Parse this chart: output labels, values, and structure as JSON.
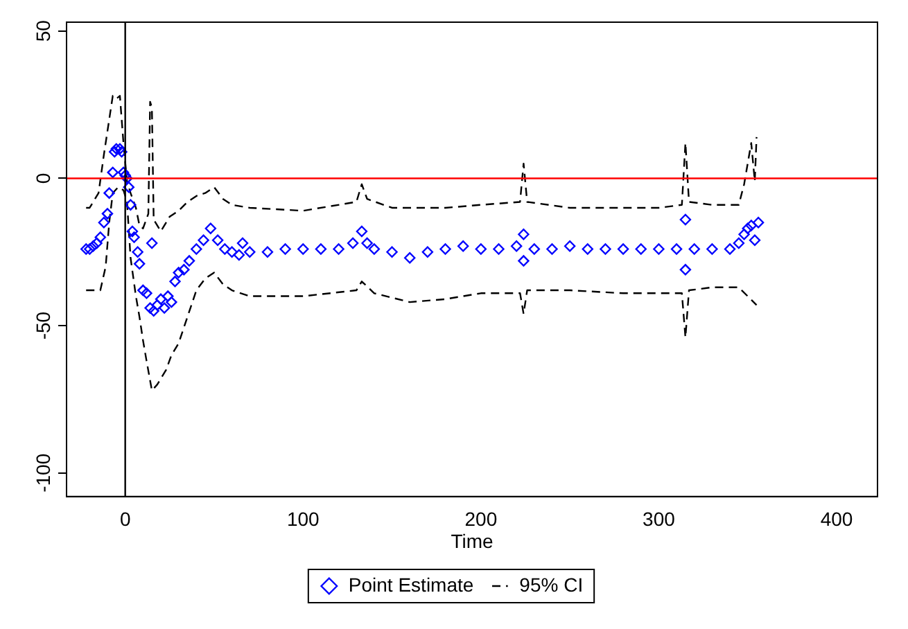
{
  "chart_data": {
    "type": "scatter",
    "xlabel": "Time",
    "xlim": [
      -33,
      423
    ],
    "ylim": [
      -108,
      53
    ],
    "xticks": [
      0,
      100,
      200,
      300,
      400
    ],
    "yticks": [
      -100,
      -50,
      0,
      50
    ],
    "grid": false,
    "legend": "bottom",
    "ref_lines": [
      {
        "axis": "y",
        "value": 0,
        "color": "#ff0000"
      },
      {
        "axis": "x",
        "value": 0,
        "color": "#000000"
      }
    ],
    "series": [
      {
        "name": "Point Estimate",
        "color": "#0000ff",
        "marker": "diamond",
        "x": [
          -22,
          -20,
          -18,
          -16,
          -14,
          -12,
          -10,
          -9,
          -7,
          -6,
          -5,
          -3,
          -2,
          -1,
          0,
          1,
          2,
          3,
          4,
          5,
          7,
          8,
          10,
          12,
          14,
          15,
          16,
          18,
          20,
          22,
          24,
          26,
          28,
          30,
          33,
          36,
          40,
          44,
          48,
          52,
          56,
          60,
          64,
          66,
          70,
          80,
          90,
          100,
          110,
          120,
          128,
          133,
          136,
          140,
          150,
          160,
          170,
          180,
          190,
          200,
          210,
          220,
          224,
          224,
          230,
          240,
          250,
          260,
          270,
          280,
          290,
          300,
          310,
          315,
          315,
          320,
          330,
          340,
          345,
          348,
          350,
          352,
          354,
          356
        ],
        "values": [
          -24,
          -24,
          -23,
          -22,
          -20,
          -15,
          -12,
          -5,
          2,
          9,
          10,
          10,
          9,
          2,
          1,
          0,
          -3,
          -9,
          -18,
          -20,
          -25,
          -29,
          -38,
          -39,
          -44,
          -22,
          -45,
          -43,
          -41,
          -44,
          -40,
          -42,
          -35,
          -32,
          -31,
          -28,
          -24,
          -21,
          -17,
          -21,
          -24,
          -25,
          -26,
          -22,
          -25,
          -25,
          -24,
          -24,
          -24,
          -24,
          -22,
          -18,
          -22,
          -24,
          -25,
          -27,
          -25,
          -24,
          -23,
          -24,
          -24,
          -23,
          -19,
          -28,
          -24,
          -24,
          -23,
          -24,
          -24,
          -24,
          -24,
          -24,
          -24,
          -14,
          -31,
          -24,
          -24,
          -24,
          -22,
          -19,
          -17,
          -16,
          -21,
          -15
        ]
      },
      {
        "name": "95% CI",
        "type": "line",
        "color": "#000000",
        "line_style": "dashed",
        "x": [
          -22,
          -20,
          -18,
          -15,
          -12,
          -9,
          -7,
          -5,
          -3,
          -1,
          1,
          3,
          6,
          8,
          10,
          13,
          14,
          15,
          16,
          20,
          25,
          30,
          35,
          40,
          45,
          50,
          55,
          60,
          70,
          100,
          130,
          133,
          136,
          150,
          180,
          200,
          222,
          224,
          226,
          250,
          280,
          300,
          313,
          315,
          317,
          330,
          345,
          348,
          350,
          352,
          354,
          355
        ],
        "values": [
          -10,
          -10,
          -8,
          -5,
          8,
          20,
          28,
          27,
          28,
          12,
          -1,
          -5,
          -10,
          -16,
          -17,
          -12,
          26,
          24,
          -14,
          -18,
          -13,
          -11,
          -8,
          -6,
          -5,
          -3,
          -7,
          -9,
          -10,
          -11,
          -8,
          -2,
          -7,
          -10,
          -10,
          -9,
          -8,
          5,
          -8,
          -10,
          -10,
          -10,
          -9,
          12,
          -8,
          -9,
          -9,
          -2,
          5,
          12,
          -1,
          14
        ]
      },
      {
        "type": "line",
        "color": "#000000",
        "line_style": "dashed",
        "x": [
          -22,
          -18,
          -14,
          -11,
          -9,
          -7,
          -4,
          -1,
          1,
          3,
          6,
          8,
          10,
          12,
          15,
          18,
          20,
          23,
          26,
          30,
          35,
          40,
          45,
          50,
          55,
          60,
          70,
          100,
          130,
          133,
          140,
          160,
          180,
          200,
          222,
          224,
          226,
          250,
          280,
          300,
          313,
          315,
          317,
          330,
          345,
          350,
          355
        ],
        "values": [
          -38,
          -38,
          -38,
          -30,
          -15,
          -5,
          -3,
          -4,
          -8,
          -27,
          -40,
          -47,
          -55,
          -62,
          -72,
          -70,
          -68,
          -65,
          -60,
          -56,
          -47,
          -38,
          -34,
          -32,
          -36,
          -38,
          -40,
          -40,
          -38,
          -35,
          -39,
          -42,
          -41,
          -39,
          -39,
          -46,
          -38,
          -38,
          -39,
          -39,
          -39,
          -54,
          -38,
          -37,
          -37,
          -40,
          -43
        ]
      }
    ]
  }
}
